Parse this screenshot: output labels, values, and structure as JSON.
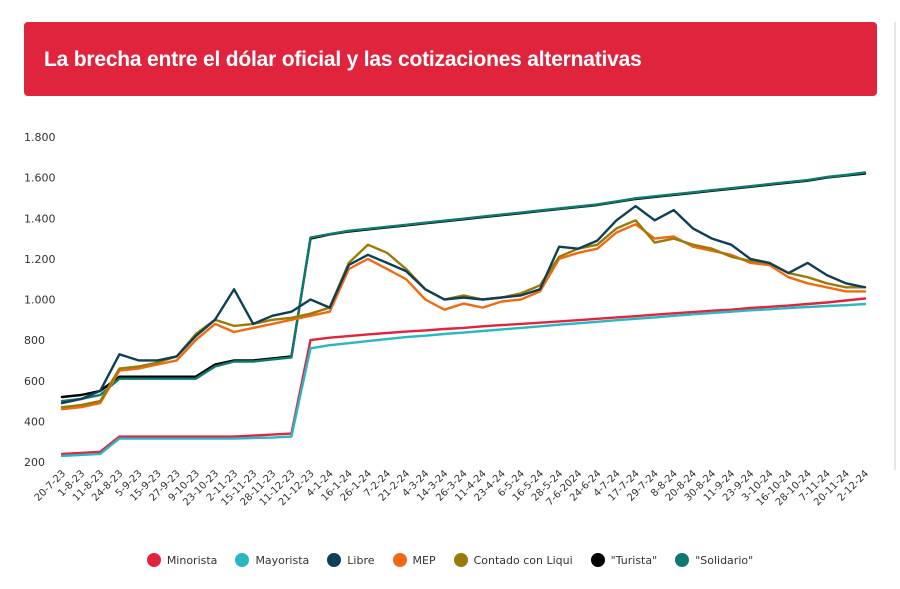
{
  "header": {
    "title": "La brecha entre el dólar oficial y las cotizaciones alternativas"
  },
  "chart_data": {
    "type": "line",
    "title": "La brecha entre el dólar oficial y las cotizaciones alternativas",
    "xlabel": "",
    "ylabel": "",
    "ylim": [
      200,
      1800
    ],
    "yticks": [
      "200",
      "400",
      "600",
      "800",
      "1.000",
      "1.200",
      "1.400",
      "1.600",
      "1.800"
    ],
    "grid": false,
    "legend_position": "bottom",
    "x": [
      "20-7-23",
      "1-8-23",
      "11-8-23",
      "24-8-23",
      "5-9-23",
      "15-9-23",
      "27-9-23",
      "9-10-23",
      "23-10-23",
      "2-11-23",
      "15-11-23",
      "28-11-23",
      "11-12-23",
      "21-12-23",
      "4-1-24",
      "16-1-24",
      "26-1-24",
      "7-2-24",
      "21-2-24",
      "4-3-24",
      "14-3-24",
      "26-3-24",
      "11-4-24",
      "23-4-24",
      "6-5-24",
      "16-5-24",
      "28-5-24",
      "7-6-2024",
      "24-6-24",
      "4-7-24",
      "17-7-24",
      "29-7-24",
      "8-8-24",
      "20-8-24",
      "30-8-24",
      "11-9-24",
      "23-9-24",
      "3-10-24",
      "16-10-24",
      "28-10-24",
      "7-11-24",
      "20-11-24",
      "2-12-24"
    ],
    "series": [
      {
        "name": "Minorista",
        "color": "#e0243e",
        "values": [
          240,
          245,
          250,
          325,
          325,
          325,
          325,
          325,
          325,
          325,
          330,
          335,
          340,
          800,
          812,
          820,
          828,
          835,
          842,
          848,
          855,
          860,
          868,
          874,
          880,
          886,
          892,
          898,
          905,
          912,
          918,
          925,
          932,
          938,
          945,
          950,
          958,
          964,
          970,
          978,
          985,
          995,
          1005
        ]
      },
      {
        "name": "Mayorista",
        "color": "#2ab7c4",
        "values": [
          230,
          235,
          240,
          315,
          315,
          315,
          315,
          315,
          315,
          315,
          318,
          320,
          325,
          760,
          775,
          785,
          795,
          805,
          815,
          822,
          830,
          837,
          845,
          853,
          860,
          868,
          876,
          883,
          890,
          898,
          905,
          912,
          920,
          927,
          934,
          940,
          947,
          952,
          958,
          963,
          968,
          972,
          978
        ]
      },
      {
        "name": "Libre",
        "color": "#0d3f56",
        "values": [
          490,
          510,
          550,
          730,
          700,
          700,
          720,
          820,
          900,
          1050,
          880,
          920,
          940,
          1000,
          960,
          1170,
          1220,
          1180,
          1140,
          1050,
          1000,
          1010,
          1000,
          1010,
          1020,
          1050,
          1260,
          1250,
          1290,
          1390,
          1460,
          1390,
          1440,
          1350,
          1300,
          1270,
          1200,
          1180,
          1130,
          1180,
          1120,
          1080,
          1060
        ]
      },
      {
        "name": "MEP",
        "color": "#f06a12",
        "values": [
          460,
          470,
          490,
          650,
          660,
          680,
          700,
          800,
          880,
          840,
          860,
          880,
          900,
          920,
          940,
          1150,
          1200,
          1150,
          1100,
          1000,
          950,
          980,
          960,
          990,
          1000,
          1040,
          1200,
          1230,
          1250,
          1330,
          1370,
          1300,
          1310,
          1260,
          1240,
          1220,
          1180,
          1170,
          1110,
          1080,
          1060,
          1040,
          1040
        ]
      },
      {
        "name": "Contado con Liqui",
        "color": "#9a7b0a",
        "values": [
          470,
          480,
          500,
          660,
          670,
          690,
          720,
          830,
          900,
          870,
          880,
          900,
          910,
          930,
          960,
          1180,
          1270,
          1230,
          1150,
          1050,
          1000,
          1020,
          1000,
          1010,
          1030,
          1070,
          1210,
          1250,
          1270,
          1350,
          1390,
          1280,
          1300,
          1270,
          1250,
          1210,
          1190,
          1180,
          1130,
          1110,
          1080,
          1060,
          1060
        ]
      },
      {
        "name": "\"Turista\"",
        "color": "#000000",
        "values": [
          520,
          530,
          550,
          620,
          620,
          620,
          620,
          620,
          680,
          700,
          700,
          710,
          720,
          1300,
          1320,
          1335,
          1345,
          1355,
          1365,
          1375,
          1385,
          1395,
          1405,
          1415,
          1425,
          1435,
          1445,
          1455,
          1465,
          1480,
          1495,
          1505,
          1515,
          1525,
          1535,
          1545,
          1555,
          1565,
          1575,
          1585,
          1600,
          1610,
          1620
        ]
      },
      {
        "name": "\"Solidario\"",
        "color": "#0e7a6e",
        "values": [
          500,
          510,
          530,
          610,
          610,
          610,
          610,
          610,
          670,
          695,
          695,
          705,
          715,
          1305,
          1322,
          1338,
          1348,
          1358,
          1368,
          1378,
          1388,
          1398,
          1408,
          1418,
          1428,
          1438,
          1448,
          1458,
          1468,
          1483,
          1498,
          1508,
          1518,
          1528,
          1538,
          1548,
          1558,
          1568,
          1578,
          1588,
          1603,
          1613,
          1625
        ]
      }
    ]
  }
}
